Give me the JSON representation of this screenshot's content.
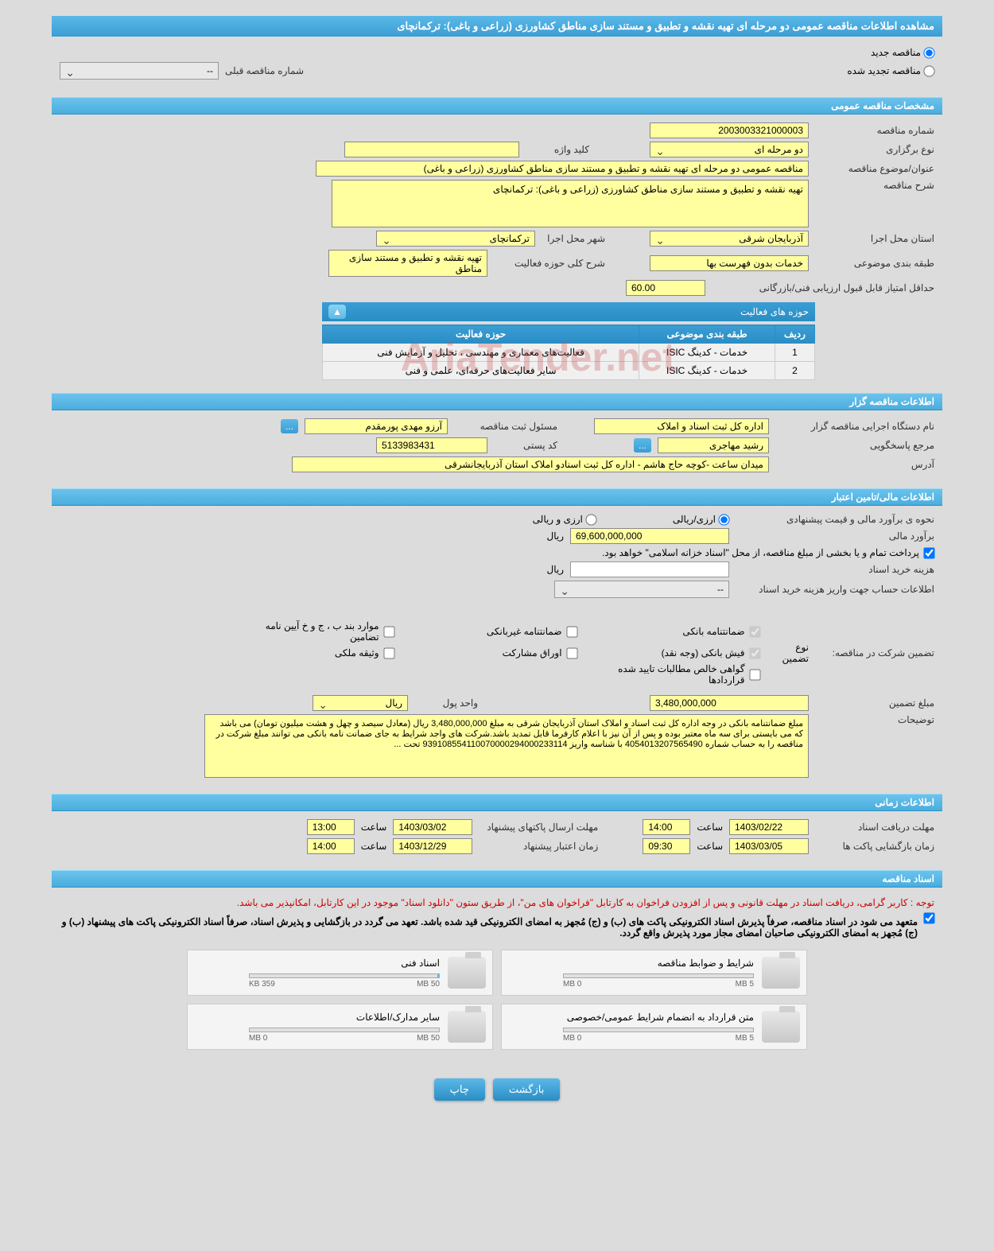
{
  "header": {
    "title": "مشاهده اطلاعات مناقصه عمومی دو مرحله ای تهیه نقشه و تطبیق و مستند سازی مناطق کشاورزی (زراعی و باغی): ترکمانچای"
  },
  "tender_type": {
    "new_label": "مناقصه جدید",
    "renewed_label": "مناقصه تجدید شده",
    "prev_number_label": "شماره مناقصه قبلی",
    "prev_number_value": "--"
  },
  "general": {
    "section_title": "مشخصات مناقصه عمومی",
    "tender_number_label": "شماره مناقصه",
    "tender_number": "2003003321000003",
    "holding_type_label": "نوع برگزاری",
    "holding_type": "دو مرحله ای",
    "keyword_label": "کلید واژه",
    "keyword": "",
    "subject_label": "عنوان/موضوع مناقصه",
    "subject": "مناقصه عمومی دو مرحله ای تهیه نقشه  و  تطبیق و مستند سازی مناطق کشاورزی (زراعی و باغی)",
    "description_label": "شرح مناقصه",
    "description": "تهیه نقشه  و  تطبیق و مستند سازی مناطق کشاورزی (زراعی و باغی): ترکمانچای",
    "province_label": "استان محل اجرا",
    "province": "آذربایجان شرقی",
    "city_label": "شهر محل اجرا",
    "city": "ترکمانچای",
    "category_label": "طبقه بندی موضوعی",
    "category": "خدمات بدون فهرست بها",
    "activity_scope_label": "شرح کلی حوزه فعالیت",
    "activity_scope": "تهیه نقشه  و تطبیق و مستند سازی مناطق",
    "min_score_label": "حداقل امتیاز قابل قبول ارزیابی فنی/بازرگانی",
    "min_score": "60.00"
  },
  "activity_panel": {
    "panel_title": "حوزه های فعالیت",
    "headers": {
      "row": "ردیف",
      "category": "طبقه بندی موضوعی",
      "scope": "حوزه فعالیت"
    },
    "rows": [
      {
        "n": "1",
        "cat": "خدمات - کدینگ ISIC",
        "scope": "فعالیت‌های معماری و مهندسی ، تحلیل و آزمایش فنی"
      },
      {
        "n": "2",
        "cat": "خدمات - کدینگ ISIC",
        "scope": "سایر فعالیت‌های حرفه‌ای، علمی و فنی"
      }
    ]
  },
  "holder": {
    "section_title": "اطلاعات مناقصه گزار",
    "org_label": "نام دستگاه اجرایی مناقصه گزار",
    "org": "اداره کل ثبت اسناد و املاک",
    "registrar_label": "مسئول ثبت مناقصه",
    "registrar": "آرزو مهدی پورمقدم",
    "responder_label": "مرجع پاسخگویی",
    "responder": "رشید مهاجری",
    "postal_label": "کد پستی",
    "postal": "5133983431",
    "address_label": "آدرس",
    "address": "میدان ساعت -کوچه حاج هاشم - اداره کل ثبت اسنادو املاک استان آذربایجانشرقی"
  },
  "financial": {
    "section_title": "اطلاعات مالی/تامین اعتبار",
    "estimate_method_label": "نحوه ی برآورد مالی و قیمت پیشنهادی",
    "arz_riyali": "ارزی/ریالی",
    "arz_riyal": "ارزی و ریالی",
    "estimate_label": "برآورد مالی",
    "estimate": "69,600,000,000",
    "currency_riyal": "ریال",
    "payment_note": "پرداخت تمام و یا بخشی از مبلغ مناقصه، از محل \"اسناد خزانه اسلامی\" خواهد بود.",
    "doc_cost_label": "هزینه خرید اسناد",
    "doc_cost": "",
    "deposit_account_label": "اطلاعات حساب جهت واریز هزینه خرید اسناد",
    "deposit_account": "--"
  },
  "guarantee": {
    "title_label": "تضمین شرکت در مناقصه:",
    "type_label": "نوع تضمین",
    "opts": {
      "bank_guarantee": "ضمانتنامه بانکی",
      "nonbank_guarantee": "ضمانتنامه غیربانکی",
      "cases_bjk": "موارد بند ب ، ج و خ آیین نامه تضامین",
      "bank_receipt": "فیش بانکی (وجه نقد)",
      "participation_bonds": "اوراق مشارکت",
      "property_deed": "وثیقه ملکی",
      "contract_receivables": "گواهی خالص مطالبات تایید شده قراردادها"
    },
    "amount_label": "مبلغ تضمین",
    "amount": "3,480,000,000",
    "unit_label": "واحد پول",
    "unit": "ریال",
    "notes_label": "توضیحات",
    "notes": "مبلغ ضمانتنامه بانکی در وجه اداره کل ثبت اسناد و املاک استان آذربایجان شرقی به مبلغ 3,480,000,000 ریال (معادل سیصد و چهل و هشت میلیون تومان) می باشد که می بایستی برای سه ماه معتبر بوده و پس از آن نیز با اعلام کارفرما قابل تمدید باشد.شرکت های واجد شرایط به جای ضمانت نامه بانکی می توانند مبلغ شرکت در مناقصه را  به حساب شماره 4054013207565490 با شناسه واریز 939108554110070000294000233114  تحت ..."
  },
  "timing": {
    "section_title": "اطلاعات زمانی",
    "receive_label": "مهلت دریافت اسناد",
    "receive_date": "1403/02/22",
    "receive_time": "14:00",
    "submit_label": "مهلت ارسال پاکتهای پیشنهاد",
    "submit_date": "1403/03/02",
    "submit_time": "13:00",
    "open_label": "زمان بازگشایی پاکت ها",
    "open_date": "1403/03/05",
    "open_time": "09:30",
    "validity_label": "زمان اعتبار پیشنهاد",
    "validity_date": "1403/12/29",
    "validity_time": "14:00",
    "time_word": "ساعت"
  },
  "documents": {
    "section_title": "اسناد مناقصه",
    "note_red": "توجه : کاربر گرامی، دریافت اسناد در مهلت قانونی و پس از افزودن فراخوان به کارتابل \"فراخوان های من\"، از طریق ستون \"دانلود اسناد\" موجود در این کارتابل، امکانپذیر می باشد.",
    "note_black": "متعهد می شود در اسناد مناقصه، صرفاً پذیرش اسناد الکترونیکی پاکت های (ب) و (ج) مُجهز به امضای الکترونیکی قید شده باشد. تعهد می گردد در بازگشایی و پذیرش اسناد، صرفاً اسناد الکترونیکی پاکت های پیشنهاد (ب) و (ج) مُجهز به امضای الکترونیکی صاحبان امضای مجاز مورد پذیرش واقع گردد.",
    "cards": [
      {
        "title": "شرایط و ضوابط مناقصه",
        "used": "0 MB",
        "total": "5 MB",
        "fill_pct": 0
      },
      {
        "title": "اسناد فنی",
        "used": "359 KB",
        "total": "50 MB",
        "fill_pct": 1
      },
      {
        "title": "متن قرارداد به انضمام شرایط عمومی/خصوصی",
        "used": "0 MB",
        "total": "5 MB",
        "fill_pct": 0
      },
      {
        "title": "سایر مدارک/اطلاعات",
        "used": "0 MB",
        "total": "50 MB",
        "fill_pct": 0
      }
    ]
  },
  "buttons": {
    "back": "بازگشت",
    "print": "چاپ"
  },
  "watermark": "AriaTender.net"
}
